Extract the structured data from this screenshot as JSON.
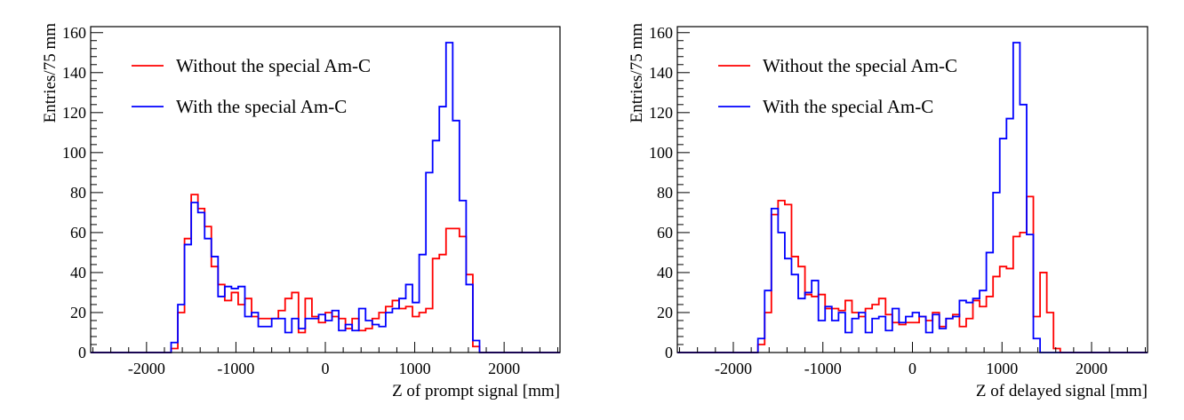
{
  "chart_data": [
    {
      "type": "histogram",
      "xlabel": "Z of prompt signal [mm]",
      "ylabel": "Entries/75 mm",
      "xlim": [
        -2625,
        2625
      ],
      "ylim": [
        0,
        163
      ],
      "xticks": [
        -2000,
        -1000,
        0,
        1000,
        2000
      ],
      "xtick_labels": [
        "-2000",
        "-1000",
        "0",
        "1000",
        "2000"
      ],
      "yticks": [
        0,
        20,
        40,
        60,
        80,
        100,
        120,
        140,
        160
      ],
      "ytick_labels": [
        "0",
        "20",
        "40",
        "60",
        "80",
        "100",
        "120",
        "140",
        "160"
      ],
      "bin_start": -2625,
      "bin_width": 75,
      "legend_position": "top-left",
      "series": [
        {
          "name": "Without the special Am-C",
          "color": "#ff0000",
          "values": [
            0,
            0,
            0,
            0,
            0,
            0,
            0,
            0,
            0,
            0,
            0,
            0,
            2,
            20,
            57,
            79,
            72,
            63,
            43,
            34,
            26,
            30,
            24,
            27,
            18,
            17,
            17,
            17,
            21,
            27,
            30,
            10,
            27,
            18,
            15,
            20,
            18,
            17,
            12,
            17,
            11,
            12,
            17,
            20,
            23,
            26,
            22,
            23,
            18,
            20,
            22,
            47,
            49,
            62,
            62,
            58,
            39,
            3,
            0,
            0,
            0,
            0,
            0,
            0,
            0,
            0,
            0,
            0,
            0,
            0
          ]
        },
        {
          "name": "With the special Am-C",
          "color": "#0000ff",
          "values": [
            0,
            0,
            0,
            0,
            0,
            0,
            0,
            0,
            0,
            0,
            0,
            0,
            5,
            24,
            54,
            75,
            70,
            57,
            48,
            28,
            33,
            32,
            33,
            18,
            20,
            13,
            13,
            17,
            17,
            10,
            17,
            12,
            17,
            17,
            19,
            16,
            21,
            11,
            14,
            11,
            22,
            16,
            14,
            13,
            20,
            22,
            27,
            34,
            25,
            49,
            90,
            106,
            123,
            155,
            116,
            76,
            34,
            6,
            0,
            0,
            0,
            0,
            0,
            0,
            0,
            0,
            0,
            0,
            0,
            0
          ]
        }
      ]
    },
    {
      "type": "histogram",
      "xlabel": "Z of delayed signal [mm]",
      "ylabel": "Entries/75 mm",
      "xlim": [
        -2625,
        2625
      ],
      "ylim": [
        0,
        163
      ],
      "xticks": [
        -2000,
        -1000,
        0,
        1000,
        2000
      ],
      "xtick_labels": [
        "-2000",
        "-1000",
        "0",
        "1000",
        "2000"
      ],
      "yticks": [
        0,
        20,
        40,
        60,
        80,
        100,
        120,
        140,
        160
      ],
      "ytick_labels": [
        "0",
        "20",
        "40",
        "60",
        "80",
        "100",
        "120",
        "140",
        "160"
      ],
      "bin_start": -2625,
      "bin_width": 75,
      "legend_position": "top-left",
      "series": [
        {
          "name": "Without the special Am-C",
          "color": "#ff0000",
          "values": [
            0,
            0,
            0,
            0,
            0,
            0,
            0,
            0,
            0,
            0,
            0,
            0,
            4,
            20,
            69,
            76,
            74,
            48,
            43,
            29,
            28,
            29,
            22,
            22,
            21,
            26,
            20,
            18,
            22,
            24,
            27,
            19,
            15,
            14,
            15,
            15,
            18,
            16,
            20,
            13,
            17,
            19,
            13,
            17,
            26,
            23,
            28,
            38,
            43,
            42,
            58,
            60,
            78,
            18,
            40,
            20,
            2,
            0,
            0,
            0,
            0,
            0,
            0,
            0,
            0,
            0,
            0,
            0,
            0,
            0
          ]
        },
        {
          "name": "With the special Am-C",
          "color": "#0000ff",
          "values": [
            0,
            0,
            0,
            0,
            0,
            0,
            0,
            0,
            0,
            0,
            0,
            0,
            7,
            31,
            72,
            60,
            47,
            39,
            27,
            30,
            36,
            16,
            23,
            16,
            20,
            10,
            17,
            20,
            10,
            17,
            18,
            11,
            22,
            15,
            18,
            20,
            18,
            10,
            19,
            12,
            17,
            18,
            26,
            25,
            27,
            31,
            50,
            80,
            107,
            117,
            155,
            124,
            59,
            7,
            0,
            0,
            0,
            0,
            0,
            0,
            0,
            0,
            0,
            0,
            0,
            0,
            0,
            0,
            0,
            0
          ]
        }
      ]
    }
  ]
}
